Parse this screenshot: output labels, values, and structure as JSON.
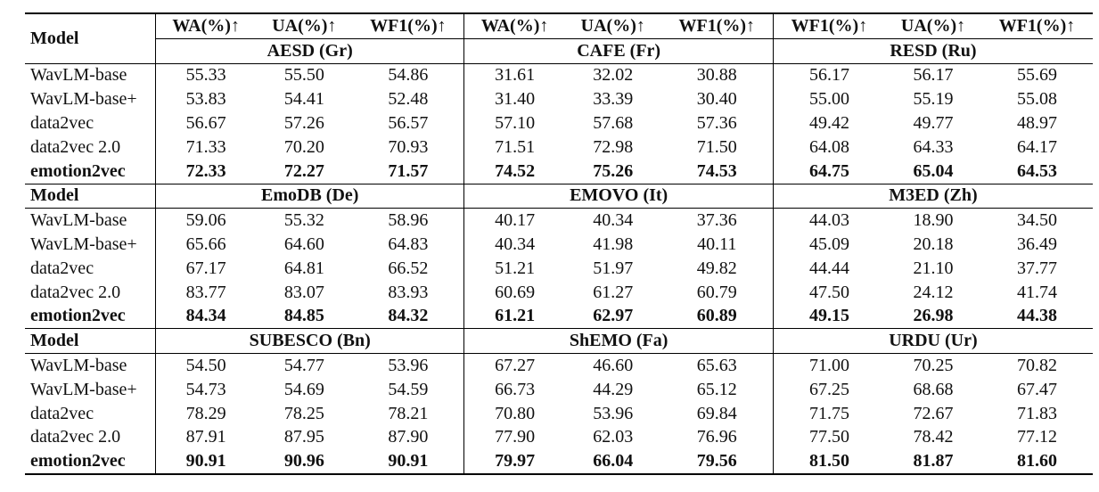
{
  "table": {
    "metrics": [
      "WA(%)↑",
      "UA(%)↑",
      "WF1(%)↑",
      "WA(%)↑",
      "UA(%)↑",
      "WF1(%)↑",
      "WF1(%)↑",
      "UA(%)↑",
      "WF1(%)↑"
    ],
    "blocks": [
      {
        "label": "Model",
        "datasets": [
          "AESD (Gr)",
          "CAFE (Fr)",
          "RESD (Ru)"
        ],
        "rows": [
          [
            "WavLM-base",
            "55.33",
            "55.50",
            "54.86",
            "31.61",
            "32.02",
            "30.88",
            "56.17",
            "56.17",
            "55.69"
          ],
          [
            "WavLM-base+",
            "53.83",
            "54.41",
            "52.48",
            "31.40",
            "33.39",
            "30.40",
            "55.00",
            "55.19",
            "55.08"
          ],
          [
            "data2vec",
            "56.67",
            "57.26",
            "56.57",
            "57.10",
            "57.68",
            "57.36",
            "49.42",
            "49.77",
            "48.97"
          ],
          [
            "data2vec 2.0",
            "71.33",
            "70.20",
            "70.93",
            "71.51",
            "72.98",
            "71.50",
            "64.08",
            "64.33",
            "64.17"
          ],
          [
            "emotion2vec",
            "72.33",
            "72.27",
            "71.57",
            "74.52",
            "75.26",
            "74.53",
            "64.75",
            "65.04",
            "64.53"
          ]
        ]
      },
      {
        "label": "Model",
        "datasets": [
          "EmoDB (De)",
          "EMOVO (It)",
          "M3ED (Zh)"
        ],
        "rows": [
          [
            "WavLM-base",
            "59.06",
            "55.32",
            "58.96",
            "40.17",
            "40.34",
            "37.36",
            "44.03",
            "18.90",
            "34.50"
          ],
          [
            "WavLM-base+",
            "65.66",
            "64.60",
            "64.83",
            "40.34",
            "41.98",
            "40.11",
            "45.09",
            "20.18",
            "36.49"
          ],
          [
            "data2vec",
            "67.17",
            "64.81",
            "66.52",
            "51.21",
            "51.97",
            "49.82",
            "44.44",
            "21.10",
            "37.77"
          ],
          [
            "data2vec 2.0",
            "83.77",
            "83.07",
            "83.93",
            "60.69",
            "61.27",
            "60.79",
            "47.50",
            "24.12",
            "41.74"
          ],
          [
            "emotion2vec",
            "84.34",
            "84.85",
            "84.32",
            "61.21",
            "62.97",
            "60.89",
            "49.15",
            "26.98",
            "44.38"
          ]
        ]
      },
      {
        "label": "Model",
        "datasets": [
          "SUBESCO (Bn)",
          "ShEMO (Fa)",
          "URDU (Ur)"
        ],
        "rows": [
          [
            "WavLM-base",
            "54.50",
            "54.77",
            "53.96",
            "67.27",
            "46.60",
            "65.63",
            "71.00",
            "70.25",
            "70.82"
          ],
          [
            "WavLM-base+",
            "54.73",
            "54.69",
            "54.59",
            "66.73",
            "44.29",
            "65.12",
            "67.25",
            "68.68",
            "67.47"
          ],
          [
            "data2vec",
            "78.29",
            "78.25",
            "78.21",
            "70.80",
            "53.96",
            "69.84",
            "71.75",
            "72.67",
            "71.83"
          ],
          [
            "data2vec 2.0",
            "87.91",
            "87.95",
            "87.90",
            "77.90",
            "62.03",
            "76.96",
            "77.50",
            "78.42",
            "77.12"
          ],
          [
            "emotion2vec",
            "90.91",
            "90.96",
            "90.91",
            "79.97",
            "66.04",
            "79.56",
            "81.50",
            "81.87",
            "81.60"
          ]
        ]
      }
    ]
  }
}
